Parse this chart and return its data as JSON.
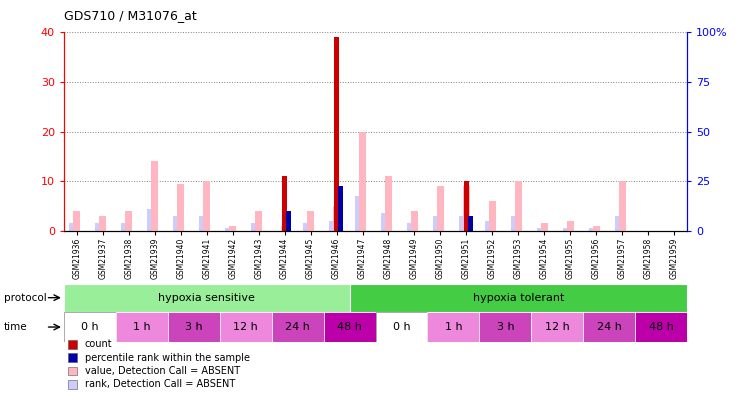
{
  "title": "GDS710 / M31076_at",
  "samples": [
    "GSM21936",
    "GSM21937",
    "GSM21938",
    "GSM21939",
    "GSM21940",
    "GSM21941",
    "GSM21942",
    "GSM21943",
    "GSM21944",
    "GSM21945",
    "GSM21946",
    "GSM21947",
    "GSM21948",
    "GSM21949",
    "GSM21950",
    "GSM21951",
    "GSM21952",
    "GSM21953",
    "GSM21954",
    "GSM21955",
    "GSM21956",
    "GSM21957",
    "GSM21958",
    "GSM21959"
  ],
  "count_values": [
    0,
    0,
    0,
    0,
    0,
    0,
    0,
    0,
    11,
    0,
    39,
    0,
    0,
    0,
    0,
    10,
    0,
    0,
    0,
    0,
    0,
    0,
    0,
    0
  ],
  "percentile_values": [
    0,
    0,
    0,
    0,
    0,
    0,
    0,
    0,
    4,
    0,
    9,
    0,
    0,
    0,
    0,
    3,
    0,
    0,
    0,
    0,
    0,
    0,
    0,
    0
  ],
  "absent_value_values": [
    4,
    3,
    4,
    14,
    9.5,
    10,
    1,
    4,
    1,
    4,
    5,
    20,
    11,
    4,
    9,
    9,
    6,
    10,
    1.5,
    2,
    1,
    10,
    0,
    0
  ],
  "absent_rank_values": [
    1.5,
    1.5,
    1.5,
    4.5,
    3,
    3,
    0.5,
    1.5,
    0,
    1.5,
    2,
    7,
    3.5,
    1.5,
    3,
    3,
    2,
    3,
    0.5,
    0.5,
    0.5,
    3,
    0,
    0
  ],
  "protocol_groups": [
    {
      "label": "hypoxia sensitive",
      "start": 0,
      "end": 11,
      "color": "#99EE99"
    },
    {
      "label": "hypoxia tolerant",
      "start": 11,
      "end": 24,
      "color": "#44CC44"
    }
  ],
  "time_groups": [
    {
      "label": "0 h",
      "start": 0,
      "end": 2,
      "color": "#FFFFFF"
    },
    {
      "label": "1 h",
      "start": 2,
      "end": 4,
      "color": "#EE88DD"
    },
    {
      "label": "3 h",
      "start": 4,
      "end": 6,
      "color": "#CC44BB"
    },
    {
      "label": "12 h",
      "start": 6,
      "end": 8,
      "color": "#EE88DD"
    },
    {
      "label": "24 h",
      "start": 8,
      "end": 10,
      "color": "#CC44BB"
    },
    {
      "label": "48 h",
      "start": 10,
      "end": 12,
      "color": "#BB00AA"
    },
    {
      "label": "0 h",
      "start": 12,
      "end": 14,
      "color": "#FFFFFF"
    },
    {
      "label": "1 h",
      "start": 14,
      "end": 16,
      "color": "#EE88DD"
    },
    {
      "label": "3 h",
      "start": 16,
      "end": 18,
      "color": "#CC44BB"
    },
    {
      "label": "12 h",
      "start": 18,
      "end": 20,
      "color": "#EE88DD"
    },
    {
      "label": "24 h",
      "start": 20,
      "end": 22,
      "color": "#CC44BB"
    },
    {
      "label": "48 h",
      "start": 22,
      "end": 24,
      "color": "#BB00AA"
    }
  ],
  "left_ylim": [
    0,
    40
  ],
  "right_ylim": [
    0,
    100
  ],
  "left_yticks": [
    0,
    10,
    20,
    30,
    40
  ],
  "right_yticks": [
    0,
    25,
    50,
    75,
    100
  ],
  "right_yticklabels": [
    "0",
    "25",
    "50",
    "75",
    "100%"
  ],
  "color_count": "#CC0000",
  "color_percentile": "#0000AA",
  "color_absent_value": "#FFB6C1",
  "color_absent_rank": "#CCCCFF",
  "legend_items": [
    {
      "color": "#CC0000",
      "label": "count"
    },
    {
      "color": "#0000AA",
      "label": "percentile rank within the sample"
    },
    {
      "color": "#FFB6C1",
      "label": "value, Detection Call = ABSENT"
    },
    {
      "color": "#CCCCFF",
      "label": "rank, Detection Call = ABSENT"
    }
  ],
  "background_color": "#CCCCCC",
  "fig_width": 7.51,
  "fig_height": 4.05,
  "dpi": 100
}
